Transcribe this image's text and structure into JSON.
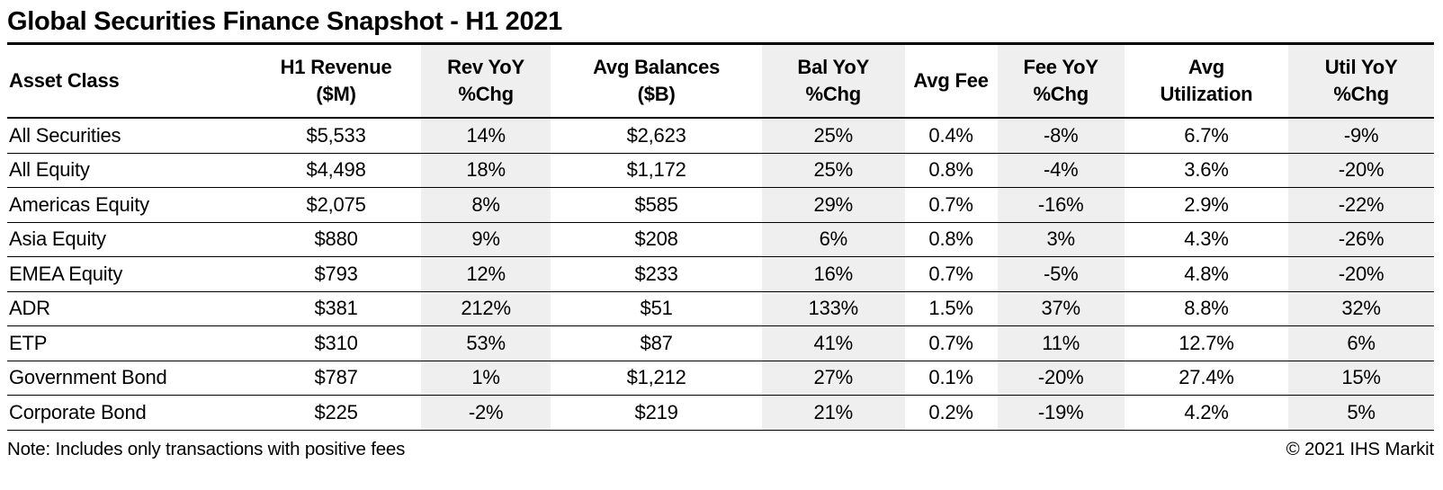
{
  "title": "Global Securities Finance Snapshot - H1 2021",
  "footer": {
    "note": "Note: Includes only transactions with positive fees",
    "copyright": "© 2021 IHS Markit"
  },
  "colors": {
    "background": "#ffffff",
    "text": "#000000",
    "border": "#000000",
    "shaded_column": "#efefef"
  },
  "chart_data": {
    "type": "table",
    "title": "Global Securities Finance Snapshot - H1 2021",
    "layout_hints": {
      "shaded_columns_are_yoy_change": true,
      "gridlines": "horizontal-only",
      "header_rows": 1
    },
    "columns": [
      {
        "label": "Asset Class",
        "align": "left",
        "shaded": false
      },
      {
        "label": "H1 Revenue\n($M)",
        "align": "center",
        "shaded": false
      },
      {
        "label": "Rev YoY\n%Chg",
        "align": "center",
        "shaded": true
      },
      {
        "label": "Avg Balances\n($B)",
        "align": "center",
        "shaded": false
      },
      {
        "label": "Bal YoY\n%Chg",
        "align": "center",
        "shaded": true
      },
      {
        "label": "Avg Fee",
        "align": "center",
        "shaded": false
      },
      {
        "label": "Fee YoY\n%Chg",
        "align": "center",
        "shaded": true
      },
      {
        "label": "Avg\nUtilization",
        "align": "center",
        "shaded": false
      },
      {
        "label": "Util YoY\n%Chg",
        "align": "center",
        "shaded": true
      }
    ],
    "rows": [
      [
        "All Securities",
        "$5,533",
        "14%",
        "$2,623",
        "25%",
        "0.4%",
        "-8%",
        "6.7%",
        "-9%"
      ],
      [
        "All Equity",
        "$4,498",
        "18%",
        "$1,172",
        "25%",
        "0.8%",
        "-4%",
        "3.6%",
        "-20%"
      ],
      [
        "Americas Equity",
        "$2,075",
        "8%",
        "$585",
        "29%",
        "0.7%",
        "-16%",
        "2.9%",
        "-22%"
      ],
      [
        "Asia Equity",
        "$880",
        "9%",
        "$208",
        "6%",
        "0.8%",
        "3%",
        "4.3%",
        "-26%"
      ],
      [
        "EMEA Equity",
        "$793",
        "12%",
        "$233",
        "16%",
        "0.7%",
        "-5%",
        "4.8%",
        "-20%"
      ],
      [
        "ADR",
        "$381",
        "212%",
        "$51",
        "133%",
        "1.5%",
        "37%",
        "8.8%",
        "32%"
      ],
      [
        "ETP",
        "$310",
        "53%",
        "$87",
        "41%",
        "0.7%",
        "11%",
        "12.7%",
        "6%"
      ],
      [
        "Government Bond",
        "$787",
        "1%",
        "$1,212",
        "27%",
        "0.1%",
        "-20%",
        "27.4%",
        "15%"
      ],
      [
        "Corporate Bond",
        "$225",
        "-2%",
        "$219",
        "21%",
        "0.2%",
        "-19%",
        "4.2%",
        "5%"
      ]
    ]
  }
}
